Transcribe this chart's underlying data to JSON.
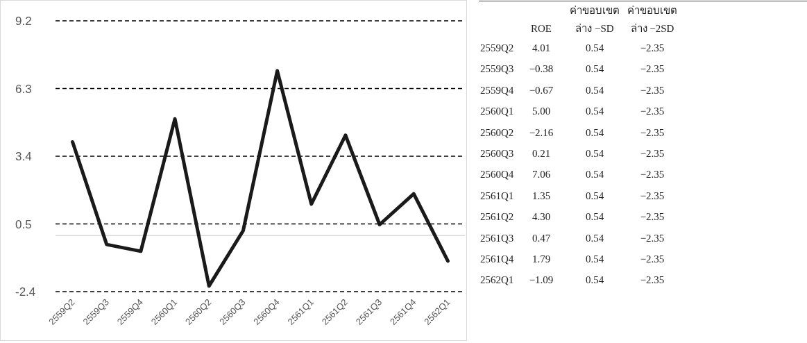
{
  "chart_data": [
    {
      "type": "line",
      "categories": [
        "2559Q2",
        "2559Q3",
        "2559Q4",
        "2560Q1",
        "2560Q2",
        "2560Q3",
        "2560Q4",
        "2561Q1",
        "2561Q2",
        "2561Q3",
        "2561Q4",
        "2562Q1"
      ],
      "series": [
        {
          "color": "#1a1a1a",
          "values": [
            4.01,
            -0.38,
            -0.67,
            5.0,
            -2.16,
            0.21,
            7.06,
            1.35,
            4.3,
            0.47,
            1.79,
            -1.09
          ]
        }
      ],
      "ylim": [
        -2.4,
        9.2
      ],
      "yticks": [
        -2.4,
        0.5,
        3.4,
        6.3,
        9.2
      ],
      "grid": "y",
      "line_style": "solid",
      "marker": "none"
    },
    {
      "type": "other",
      "categories": [
        "2559Q2",
        "2559Q3",
        "2559Q4",
        "2560Q1",
        "2560Q2",
        "2560Q3",
        "2560Q4",
        "2561Q1",
        "2561Q2",
        "2561Q3",
        "2561Q4",
        "2562Q1"
      ],
      "data_labels": true,
      "series": [
        {
          "name": "ROE",
          "values": [
            4.01,
            -0.38,
            -0.67,
            5.0,
            -2.16,
            0.21,
            7.06,
            1.35,
            4.3,
            0.47,
            1.79,
            -1.09
          ],
          "value_labels": [
            "4.01",
            "−0.38",
            "−0.67",
            "5.00",
            "−2.16",
            "0.21",
            "7.06",
            "1.35",
            "4.30",
            "0.47",
            "1.79",
            "−1.09"
          ]
        },
        {
          "name": "ค่าขอบเขต ล่าง −SD",
          "values": [
            0.54,
            0.54,
            0.54,
            0.54,
            0.54,
            0.54,
            0.54,
            0.54,
            0.54,
            0.54,
            0.54,
            0.54
          ],
          "value_labels": [
            "0.54",
            "0.54",
            "0.54",
            "0.54",
            "0.54",
            "0.54",
            "0.54",
            "0.54",
            "0.54",
            "0.54",
            "0.54",
            "0.54"
          ]
        },
        {
          "name": "ค่าขอบเขต ล่าง −2SD",
          "values": [
            -2.35,
            -2.35,
            -2.35,
            -2.35,
            -2.35,
            -2.35,
            -2.35,
            -2.35,
            -2.35,
            -2.35,
            -2.35,
            -2.35
          ],
          "value_labels": [
            "−2.35",
            "−2.35",
            "−2.35",
            "−2.35",
            "−2.35",
            "−2.35",
            "−2.35",
            "−2.35",
            "−2.35",
            "−2.35",
            "−2.35",
            "−2.35"
          ]
        }
      ]
    }
  ]
}
